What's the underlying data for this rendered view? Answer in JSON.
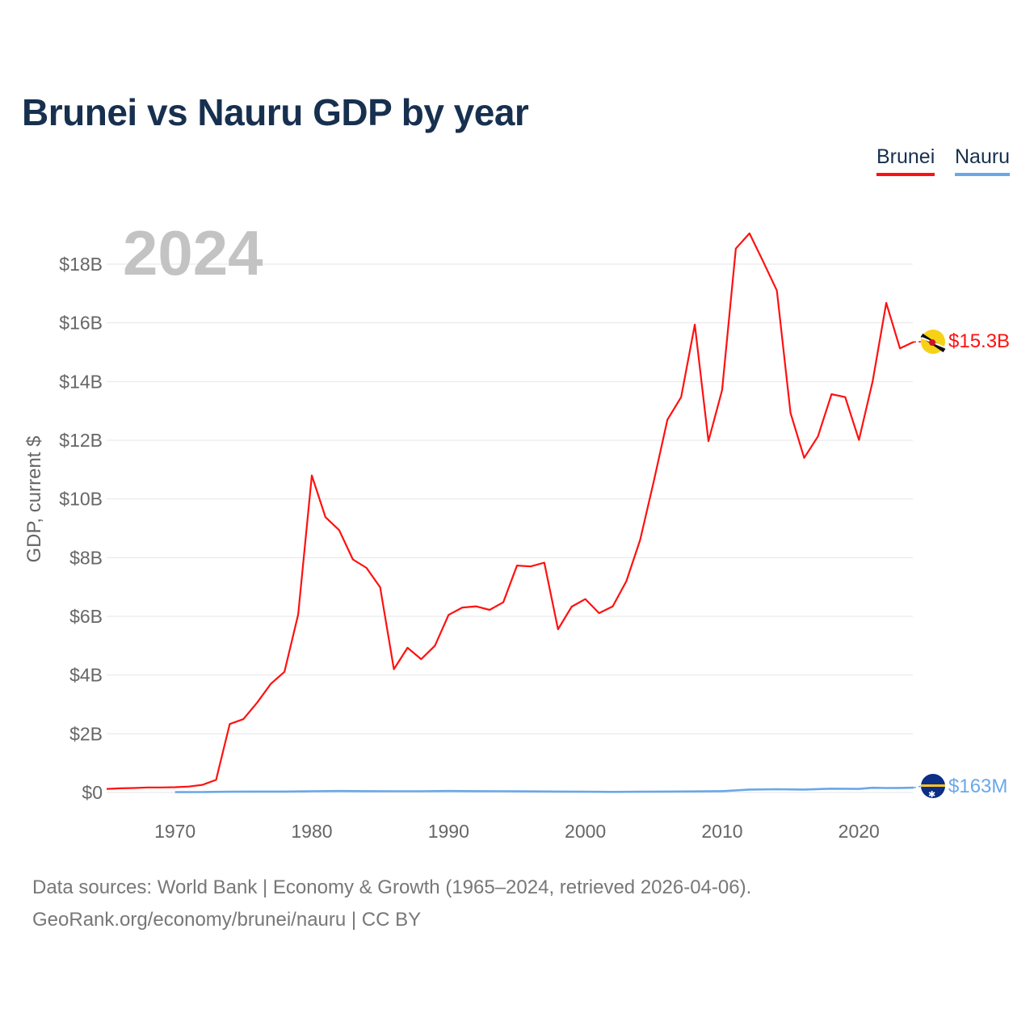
{
  "chart_data": {
    "type": "line",
    "title": "Brunei vs Nauru GDP by year",
    "ylabel": "GDP, current $",
    "xlabel": "",
    "year_label": "2024",
    "xlim": [
      1965,
      2024
    ],
    "ylim": [
      0,
      19500000000
    ],
    "x_ticks": [
      1970,
      1980,
      1990,
      2000,
      2010,
      2020
    ],
    "y_ticks": [
      {
        "value": 0,
        "label": "$0"
      },
      {
        "value": 2000000000,
        "label": "$2B"
      },
      {
        "value": 4000000000,
        "label": "$4B"
      },
      {
        "value": 6000000000,
        "label": "$6B"
      },
      {
        "value": 8000000000,
        "label": "$8B"
      },
      {
        "value": 10000000000,
        "label": "$10B"
      },
      {
        "value": 12000000000,
        "label": "$12B"
      },
      {
        "value": 14000000000,
        "label": "$14B"
      },
      {
        "value": 16000000000,
        "label": "$16B"
      },
      {
        "value": 18000000000,
        "label": "$18B"
      }
    ],
    "legend": [
      "Brunei",
      "Nauru"
    ],
    "series": [
      {
        "name": "Brunei",
        "color": "#ff1010",
        "end_label": "$15.3B",
        "x": [
          1965,
          1966,
          1967,
          1968,
          1969,
          1970,
          1971,
          1972,
          1973,
          1974,
          1975,
          1976,
          1977,
          1978,
          1979,
          1980,
          1981,
          1982,
          1983,
          1984,
          1985,
          1986,
          1987,
          1988,
          1989,
          1990,
          1991,
          1992,
          1993,
          1994,
          1995,
          1996,
          1997,
          1998,
          1999,
          2000,
          2001,
          2002,
          2003,
          2004,
          2005,
          2006,
          2007,
          2008,
          2009,
          2010,
          2011,
          2012,
          2013,
          2014,
          2015,
          2016,
          2017,
          2018,
          2019,
          2020,
          2021,
          2022,
          2023,
          2024
        ],
        "values": [
          120000000,
          140000000,
          150000000,
          170000000,
          170000000,
          180000000,
          200000000,
          260000000,
          430000000,
          2330000000,
          2500000000,
          3060000000,
          3700000000,
          4110000000,
          6060000000,
          10800000000,
          9380000000,
          8940000000,
          7940000000,
          7650000000,
          6990000000,
          4200000000,
          4930000000,
          4540000000,
          5000000000,
          6050000000,
          6300000000,
          6340000000,
          6220000000,
          6480000000,
          7730000000,
          7700000000,
          7830000000,
          5560000000,
          6330000000,
          6590000000,
          6110000000,
          6340000000,
          7200000000,
          8600000000,
          10600000000,
          12700000000,
          13470000000,
          15940000000,
          11970000000,
          13710000000,
          18530000000,
          19050000000,
          18090000000,
          17100000000,
          12930000000,
          11400000000,
          12130000000,
          13570000000,
          13470000000,
          12010000000,
          14000000000,
          16680000000,
          15130000000,
          15350000000
        ]
      },
      {
        "name": "Nauru",
        "color": "#6aa8e8",
        "end_label": "$163M",
        "x": [
          1970,
          1972,
          1974,
          1976,
          1978,
          1980,
          1982,
          1984,
          1986,
          1988,
          1990,
          1992,
          1994,
          1996,
          1998,
          2000,
          2002,
          2004,
          2006,
          2008,
          2010,
          2012,
          2014,
          2016,
          2018,
          2020,
          2021,
          2022,
          2023,
          2024
        ],
        "values": [
          10000000,
          15000000,
          25000000,
          30000000,
          30000000,
          40000000,
          50000000,
          45000000,
          40000000,
          40000000,
          50000000,
          45000000,
          40000000,
          35000000,
          30000000,
          25000000,
          20000000,
          25000000,
          30000000,
          35000000,
          45000000,
          100000000,
          110000000,
          100000000,
          130000000,
          120000000,
          160000000,
          150000000,
          155000000,
          163000000
        ]
      }
    ]
  },
  "source_text": "Data sources: World Bank | Economy & Growth (1965–2024, retrieved 2026-04-06).",
  "credit_text": "GeoRank.org/economy/brunei/nauru | CC BY"
}
